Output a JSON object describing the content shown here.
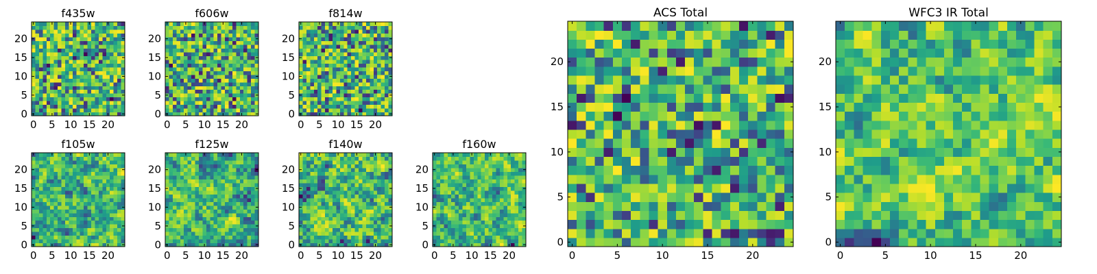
{
  "chart_data": [
    {
      "type": "heatmap",
      "title": "f435w",
      "x_ticks": [
        0,
        5,
        10,
        15,
        20
      ],
      "y_ticks": [
        0,
        5,
        10,
        15,
        20
      ],
      "xlim": [
        -0.5,
        24.5
      ],
      "ylim": [
        -0.5,
        24.5
      ],
      "grid_size": 25,
      "colormap": "viridis",
      "texture": "noisy",
      "seed": 11
    },
    {
      "type": "heatmap",
      "title": "f606w",
      "x_ticks": [
        0,
        5,
        10,
        15,
        20
      ],
      "y_ticks": [
        0,
        5,
        10,
        15,
        20
      ],
      "xlim": [
        -0.5,
        24.5
      ],
      "ylim": [
        -0.5,
        24.5
      ],
      "grid_size": 25,
      "colormap": "viridis",
      "texture": "noisy",
      "seed": 23
    },
    {
      "type": "heatmap",
      "title": "f814w",
      "x_ticks": [
        0,
        5,
        10,
        15,
        20
      ],
      "y_ticks": [
        0,
        5,
        10,
        15,
        20
      ],
      "xlim": [
        -0.5,
        24.5
      ],
      "ylim": [
        -0.5,
        24.5
      ],
      "grid_size": 25,
      "colormap": "viridis",
      "texture": "noisy",
      "seed": 37
    },
    {
      "type": "heatmap",
      "title": "f105w",
      "x_ticks": [
        0,
        5,
        10,
        15,
        20
      ],
      "y_ticks": [
        0,
        5,
        10,
        15,
        20
      ],
      "xlim": [
        -0.5,
        24.5
      ],
      "ylim": [
        -0.5,
        24.5
      ],
      "grid_size": 25,
      "colormap": "viridis",
      "texture": "smooth",
      "seed": 41
    },
    {
      "type": "heatmap",
      "title": "f125w",
      "x_ticks": [
        0,
        5,
        10,
        15,
        20
      ],
      "y_ticks": [
        0,
        5,
        10,
        15,
        20
      ],
      "xlim": [
        -0.5,
        24.5
      ],
      "ylim": [
        -0.5,
        24.5
      ],
      "grid_size": 25,
      "colormap": "viridis",
      "texture": "smooth",
      "seed": 53
    },
    {
      "type": "heatmap",
      "title": "f140w",
      "x_ticks": [
        0,
        5,
        10,
        15,
        20
      ],
      "y_ticks": [
        0,
        5,
        10,
        15,
        20
      ],
      "xlim": [
        -0.5,
        24.5
      ],
      "ylim": [
        -0.5,
        24.5
      ],
      "grid_size": 25,
      "colormap": "viridis",
      "texture": "smooth",
      "seed": 67
    },
    {
      "type": "heatmap",
      "title": "f160w",
      "x_ticks": [
        0,
        5,
        10,
        15,
        20
      ],
      "y_ticks": [
        0,
        5,
        10,
        15,
        20
      ],
      "xlim": [
        -0.5,
        24.5
      ],
      "ylim": [
        -0.5,
        24.5
      ],
      "grid_size": 25,
      "colormap": "viridis",
      "texture": "smooth",
      "seed": 79
    },
    {
      "type": "heatmap",
      "title": "ACS Total",
      "x_ticks": [
        0,
        5,
        10,
        15,
        20
      ],
      "y_ticks": [
        0,
        5,
        10,
        15,
        20
      ],
      "xlim": [
        -0.5,
        24.5
      ],
      "ylim": [
        -0.5,
        24.5
      ],
      "grid_size": 25,
      "colormap": "viridis",
      "texture": "noisy",
      "seed": 83
    },
    {
      "type": "heatmap",
      "title": "WFC3 IR Total",
      "x_ticks": [
        0,
        5,
        10,
        15,
        20
      ],
      "y_ticks": [
        0,
        5,
        10,
        15,
        20
      ],
      "xlim": [
        -0.5,
        24.5
      ],
      "ylim": [
        -0.5,
        24.5
      ],
      "grid_size": 25,
      "colormap": "viridis",
      "texture": "smooth",
      "seed": 97
    }
  ]
}
